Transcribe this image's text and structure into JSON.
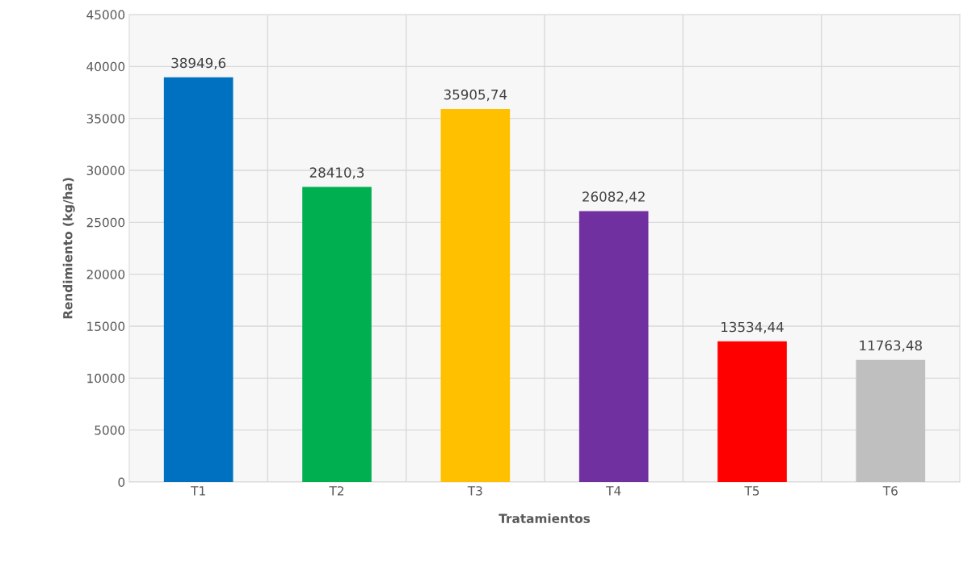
{
  "chart_data": {
    "type": "bar",
    "xlabel": "Tratamientos",
    "ylabel": "Rendimiento (kg/ha)",
    "categories": [
      "T1",
      "T2",
      "T3",
      "T4",
      "T5",
      "T6"
    ],
    "values": [
      38949.6,
      28410.3,
      35905.74,
      26082.42,
      13534.44,
      11763.48
    ],
    "colors": [
      "#0070c0",
      "#00b050",
      "#ffc000",
      "#7030a0",
      "#ff0000",
      "#bfbfbf"
    ],
    "value_labels": [
      "38949,6",
      "28410,3",
      "35905,74",
      "26082,42",
      "13534,44",
      "11763,48"
    ],
    "ylim": [
      0,
      45000
    ],
    "yticks": [
      0,
      5000,
      10000,
      15000,
      20000,
      25000,
      30000,
      35000,
      40000,
      45000
    ],
    "grid": true
  }
}
